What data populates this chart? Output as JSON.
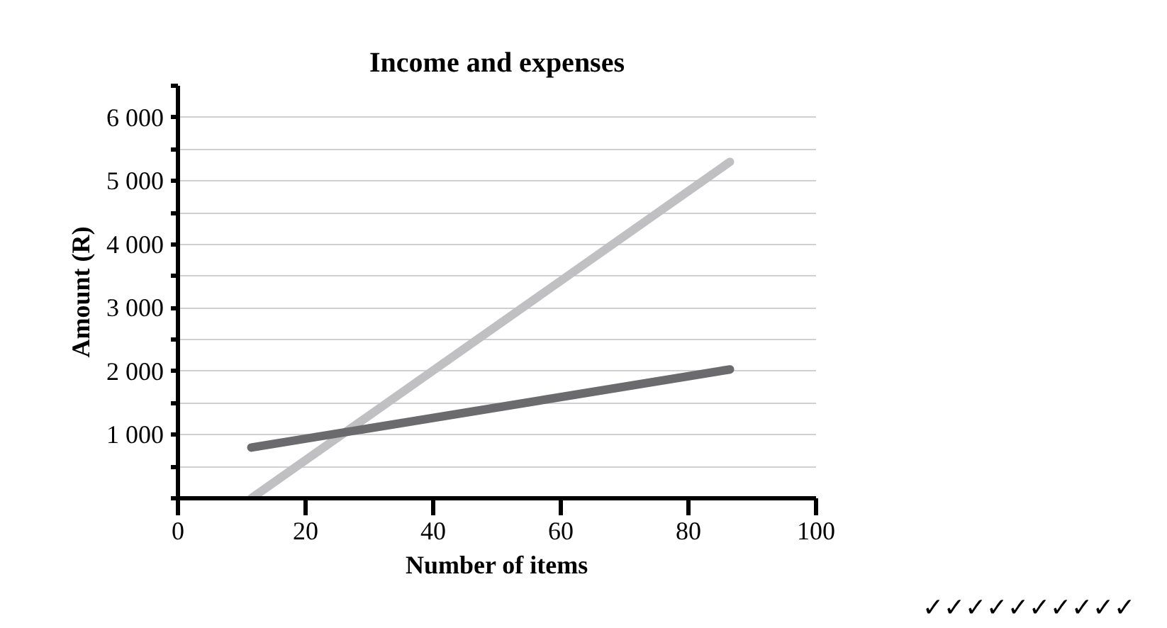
{
  "chart_data": {
    "type": "line",
    "title": "Income and expenses",
    "xlabel": "Number of items",
    "ylabel": "Amount (R)",
    "xlim": [
      0,
      100
    ],
    "xticks": [
      0,
      20,
      40,
      60,
      80,
      100
    ],
    "ylim": [
      0,
      6500
    ],
    "yticks": [
      {
        "value": 0,
        "label": null
      },
      {
        "value": 500,
        "label": null
      },
      {
        "value": 1000,
        "label": "1 000"
      },
      {
        "value": 1500,
        "label": null
      },
      {
        "value": 2000,
        "label": "2 000"
      },
      {
        "value": 2500,
        "label": null
      },
      {
        "value": 3000,
        "label": "3 000"
      },
      {
        "value": 3500,
        "label": null
      },
      {
        "value": 4000,
        "label": "4 000"
      },
      {
        "value": 4500,
        "label": null
      },
      {
        "value": 5000,
        "label": "5 000"
      },
      {
        "value": 5500,
        "label": null
      },
      {
        "value": 6000,
        "label": "6 000"
      },
      {
        "value": 6500,
        "label": null
      }
    ],
    "grid": "y",
    "marker": "none",
    "line_style": "solid",
    "x": [
      11.5,
      86.5
    ],
    "series": [
      {
        "color": "#c0c0c2",
        "values": [
          0,
          5300
        ]
      },
      {
        "color": "#6b6b6e",
        "values": [
          800,
          2030
        ]
      }
    ],
    "annotations": [
      "✓✓✓✓✓✓✓✓✓✓"
    ]
  }
}
